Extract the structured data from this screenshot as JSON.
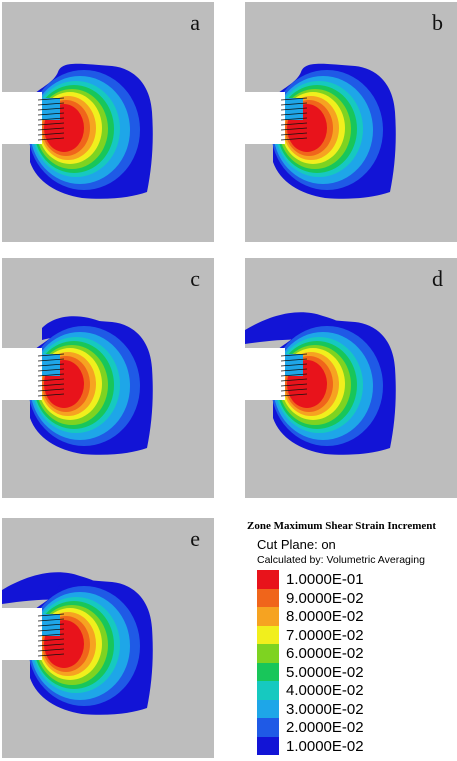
{
  "panels": [
    {
      "id": "a",
      "label": "a"
    },
    {
      "id": "b",
      "label": "b"
    },
    {
      "id": "c",
      "label": "c"
    },
    {
      "id": "d",
      "label": "d"
    },
    {
      "id": "e",
      "label": "e"
    }
  ],
  "legend": {
    "title": "Zone Maximum Shear Strain Increment",
    "cut_plane": "Cut Plane: on",
    "calculated_by": "Calculated by: Volumetric Averaging",
    "entries": [
      {
        "value": "1.0000E-01",
        "color": "#e8131b"
      },
      {
        "value": "9.0000E-02",
        "color": "#f0651b"
      },
      {
        "value": "8.0000E-02",
        "color": "#f6a321"
      },
      {
        "value": "7.0000E-02",
        "color": "#f1ef1d"
      },
      {
        "value": "6.0000E-02",
        "color": "#7ed321"
      },
      {
        "value": "5.0000E-02",
        "color": "#18c65a"
      },
      {
        "value": "4.0000E-02",
        "color": "#16c9c0"
      },
      {
        "value": "3.0000E-02",
        "color": "#1ea6e8"
      },
      {
        "value": "2.0000E-02",
        "color": "#1f5ae6"
      },
      {
        "value": "1.0000E-02",
        "color": "#1214d6"
      }
    ],
    "background_color": "#bdbdbd"
  }
}
